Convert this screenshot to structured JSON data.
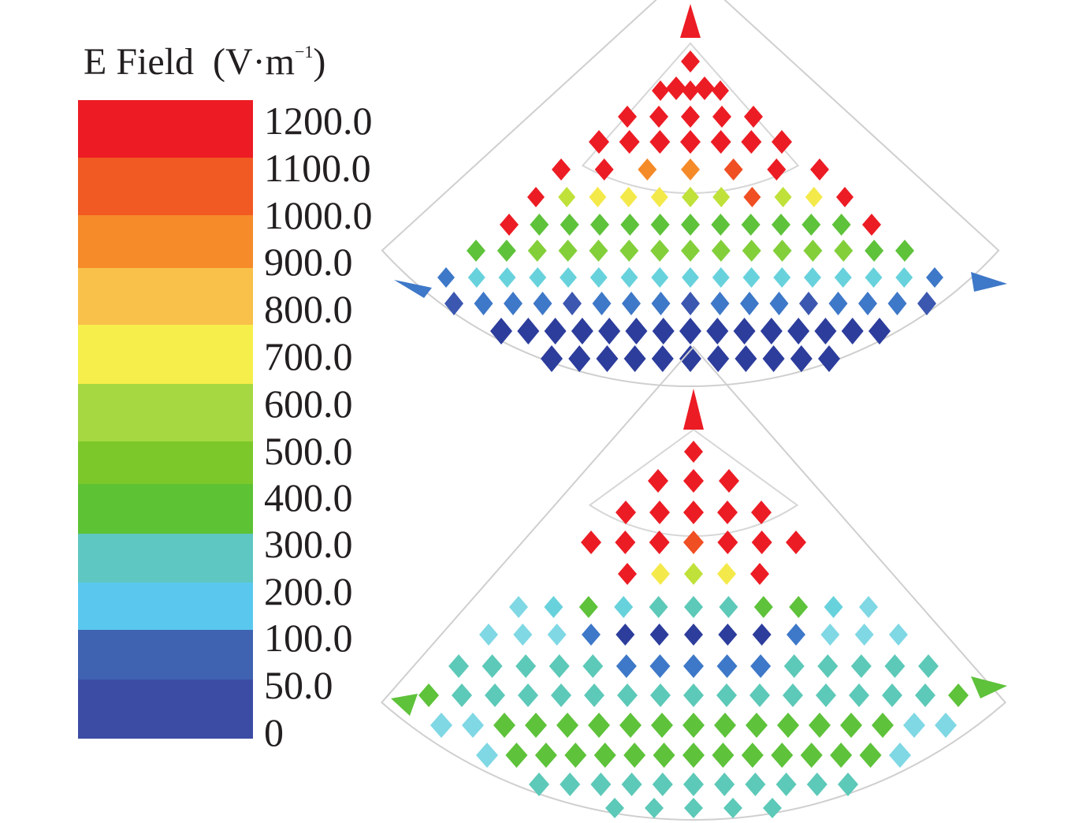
{
  "legend": {
    "title_text": "E Field",
    "unit_prefix": "(V·m",
    "unit_exponent": "−1",
    "unit_suffix": ")",
    "entries": [
      {
        "label": "1200.0",
        "color": "#ed1c24"
      },
      {
        "label": "1100.0",
        "color": "#f15a22"
      },
      {
        "label": "1000.0",
        "color": "#f68b2a"
      },
      {
        "label": "900.0",
        "color": "#f9c04a"
      },
      {
        "label": "800.0",
        "color": "#f6ee4a"
      },
      {
        "label": "700.0",
        "color": "#a5d841"
      },
      {
        "label": "600.0",
        "color": "#7cc82a"
      },
      {
        "label": "500.0",
        "color": "#5dc234"
      },
      {
        "label": "400.0",
        "color": "#5ec7c2"
      },
      {
        "label": "300.0",
        "color": "#5ac8ee"
      },
      {
        "label": "200.0",
        "color": "#3f62b1"
      },
      {
        "label": "100.0",
        "color": "#3c4ca4"
      },
      {
        "label": "50.0",
        "color": "#3c4ca4"
      },
      {
        "label": "0",
        "color": "#3c4ca4"
      }
    ]
  },
  "panels": [
    {
      "name": "upper-sector"
    },
    {
      "name": "lower-sector"
    }
  ]
}
